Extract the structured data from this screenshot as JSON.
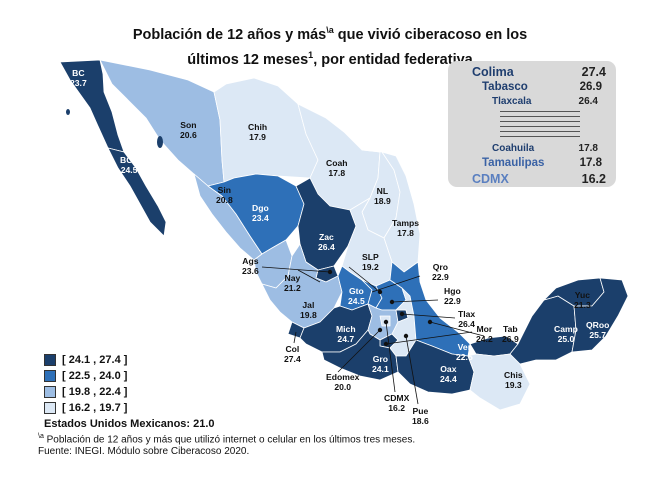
{
  "title": {
    "line1_a": "Población de 12 años y más",
    "line1_sup": "\\a",
    "line1_b": " que vivió ciberacoso en los",
    "line2_a": "últimos 12 meses",
    "line2_sup": "1",
    "line2_b": ", por entidad federativa"
  },
  "colors": {
    "bin1": "#1b3f6b",
    "bin2": "#2e70b8",
    "bin3": "#9dbde3",
    "bin4": "#dce8f5"
  },
  "map_labels": [
    {
      "abbr": "BC",
      "value": "23.7"
    },
    {
      "abbr": "Son",
      "value": "20.6"
    },
    {
      "abbr": "Chih",
      "value": "17.9"
    },
    {
      "abbr": "Coah",
      "value": "17.8"
    },
    {
      "abbr": "BCS",
      "value": "24.5"
    },
    {
      "abbr": "Sin",
      "value": "20.8"
    },
    {
      "abbr": "Dgo",
      "value": "23.4"
    },
    {
      "abbr": "NL",
      "value": "18.9"
    },
    {
      "abbr": "Tamps",
      "value": "17.8"
    },
    {
      "abbr": "Zac",
      "value": "26.4"
    },
    {
      "abbr": "SLP",
      "value": "19.2"
    },
    {
      "abbr": "Ags",
      "value": "23.6"
    },
    {
      "abbr": "Qro",
      "value": "22.9"
    },
    {
      "abbr": "Nay",
      "value": "21.2"
    },
    {
      "abbr": "Gto",
      "value": "24.5"
    },
    {
      "abbr": "Hgo",
      "value": "22.9"
    },
    {
      "abbr": "Jal",
      "value": "19.8"
    },
    {
      "abbr": "Tlax",
      "value": "26.4"
    },
    {
      "abbr": "Mich",
      "value": "24.7"
    },
    {
      "abbr": "Mor",
      "value": "24.2"
    },
    {
      "abbr": "Tab",
      "value": "26.9"
    },
    {
      "abbr": "Col",
      "value": "27.4"
    },
    {
      "abbr": "Ver",
      "value": "22.5"
    },
    {
      "abbr": "Gro",
      "value": "24.1"
    },
    {
      "abbr": "Edomex",
      "value": "20.0"
    },
    {
      "abbr": "CDMX",
      "value": "16.2"
    },
    {
      "abbr": "Oax",
      "value": "24.4"
    },
    {
      "abbr": "Pue",
      "value": "18.6"
    },
    {
      "abbr": "Chis",
      "value": "19.3"
    },
    {
      "abbr": "Yuc",
      "value": "21.3"
    },
    {
      "abbr": "Camp",
      "value": "25.0"
    },
    {
      "abbr": "QRoo",
      "value": "25.7"
    }
  ],
  "ranking": [
    {
      "name": "Colima",
      "value": "27.4"
    },
    {
      "name": "Tabasco",
      "value": "26.9"
    },
    {
      "name": "Tlaxcala",
      "value": "26.4"
    },
    {
      "name": "Coahuila",
      "value": "17.8"
    },
    {
      "name": "Tamaulipas",
      "value": "17.8"
    },
    {
      "name": "CDMX",
      "value": "16.2"
    }
  ],
  "legend": [
    {
      "label": "[ 24.1 , 27.4 ]",
      "color": "#1b3f6b"
    },
    {
      "label": "[ 22.5 , 24.0 ]",
      "color": "#2e70b8"
    },
    {
      "label": "[ 19.8 , 22.4 ]",
      "color": "#9dbde3"
    },
    {
      "label": "[ 16.2 , 19.7 ]",
      "color": "#dce8f5"
    }
  ],
  "national": "Estados Unidos Mexicanos:  21.0",
  "footnote_sup": "\\a",
  "footnote": " Población de 12 años y más que utilizó internet o celular en los últimos tres meses.",
  "source": "Fuente: INEGI. Módulo sobre Ciberacoso 2020."
}
